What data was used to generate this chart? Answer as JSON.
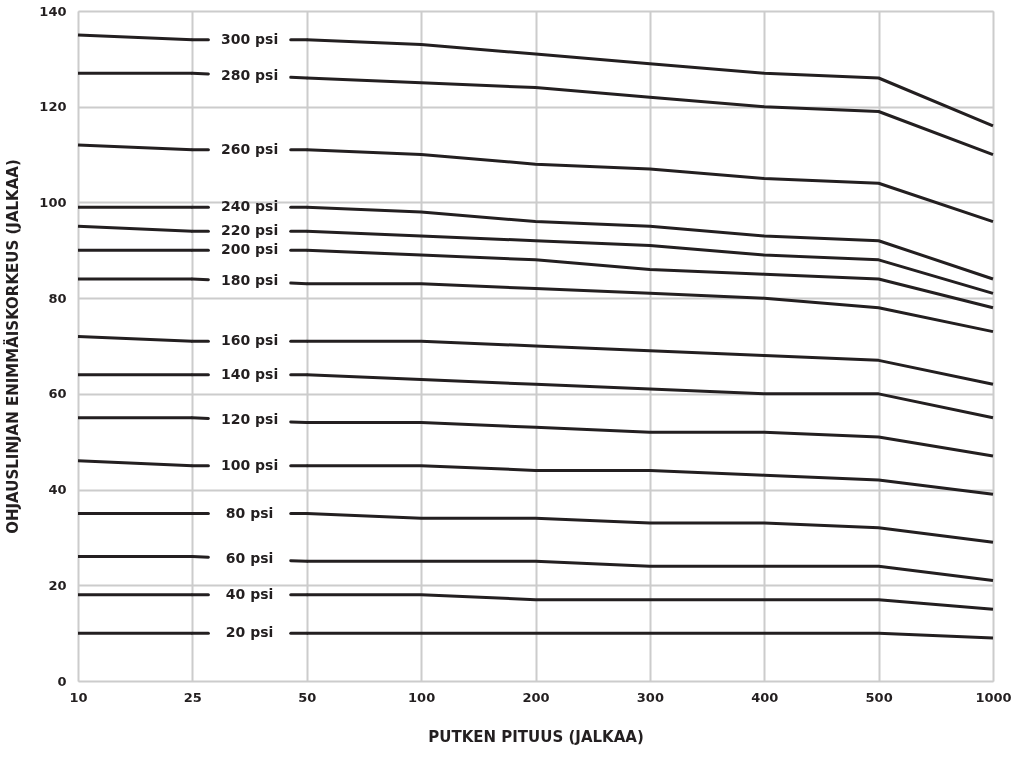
{
  "chart_data": {
    "type": "line",
    "xlabel": "PUTKEN PITUUS (JALKAA)",
    "ylabel": "OHJAUSLINJAN ENIMMÄISKORKEUS (JALKAA)",
    "categories": [
      "10",
      "25",
      "50",
      "100",
      "200",
      "300",
      "400",
      "500",
      "1000"
    ],
    "ylim": [
      0,
      140
    ],
    "yticks": [
      0,
      20,
      40,
      60,
      80,
      100,
      120,
      140
    ],
    "grid": true,
    "line_style": "solid",
    "marker": "none",
    "series": [
      {
        "name": "300 psi",
        "color": "#231f20",
        "values": [
          135,
          134,
          134,
          133,
          131,
          129,
          127,
          126,
          116
        ]
      },
      {
        "name": "280 psi",
        "color": "#231f20",
        "values": [
          127,
          127,
          126,
          125,
          124,
          122,
          120,
          119,
          110
        ]
      },
      {
        "name": "260 psi",
        "color": "#231f20",
        "values": [
          112,
          111,
          111,
          110,
          108,
          107,
          105,
          104,
          96
        ]
      },
      {
        "name": "240 psi",
        "color": "#231f20",
        "values": [
          99,
          99,
          99,
          98,
          96,
          95,
          93,
          92,
          84
        ]
      },
      {
        "name": "220 psi",
        "color": "#231f20",
        "values": [
          95,
          94,
          94,
          93,
          92,
          91,
          89,
          88,
          81
        ]
      },
      {
        "name": "200 psi",
        "color": "#231f20",
        "values": [
          90,
          90,
          90,
          89,
          88,
          86,
          85,
          84,
          78
        ]
      },
      {
        "name": "180 psi",
        "color": "#231f20",
        "values": [
          84,
          84,
          83,
          83,
          82,
          81,
          80,
          78,
          73
        ]
      },
      {
        "name": "160 psi",
        "color": "#231f20",
        "values": [
          72,
          71,
          71,
          71,
          70,
          69,
          68,
          67,
          62
        ]
      },
      {
        "name": "140 psi",
        "color": "#231f20",
        "values": [
          64,
          64,
          64,
          63,
          62,
          61,
          60,
          60,
          55
        ]
      },
      {
        "name": "120 psi",
        "color": "#231f20",
        "values": [
          55,
          55,
          54,
          54,
          53,
          52,
          52,
          51,
          47
        ]
      },
      {
        "name": "100 psi",
        "color": "#231f20",
        "values": [
          46,
          45,
          45,
          45,
          44,
          44,
          43,
          42,
          39
        ]
      },
      {
        "name": "80 psi",
        "color": "#231f20",
        "values": [
          35,
          35,
          35,
          34,
          34,
          33,
          33,
          32,
          29
        ]
      },
      {
        "name": "60 psi",
        "color": "#231f20",
        "values": [
          26,
          26,
          25,
          25,
          25,
          24,
          24,
          24,
          21
        ]
      },
      {
        "name": "40 psi",
        "color": "#231f20",
        "values": [
          18,
          18,
          18,
          18,
          17,
          17,
          17,
          17,
          15
        ]
      },
      {
        "name": "20 psi",
        "color": "#231f20",
        "values": [
          10,
          10,
          10,
          10,
          10,
          10,
          10,
          10,
          9
        ]
      }
    ]
  }
}
